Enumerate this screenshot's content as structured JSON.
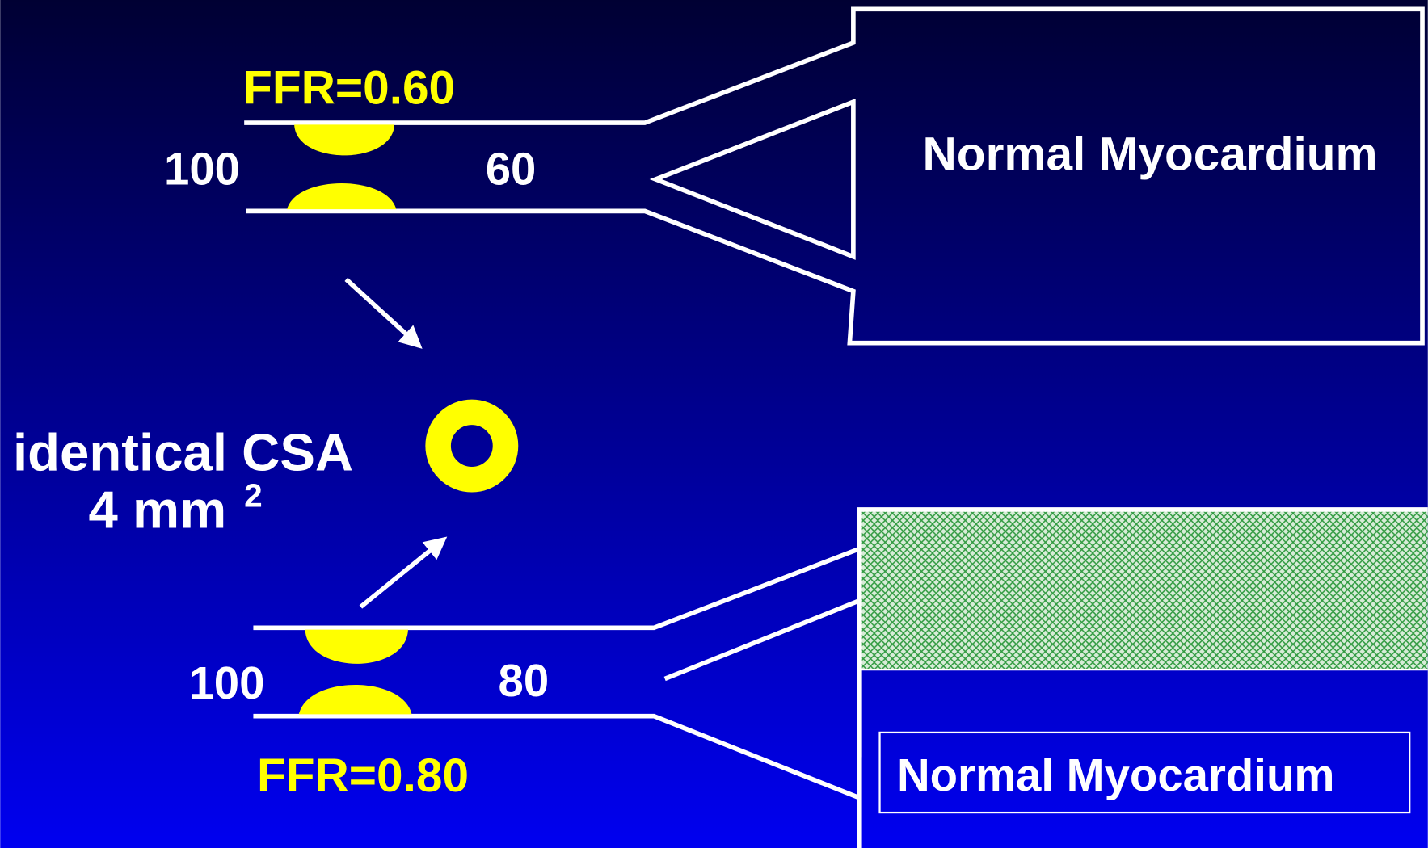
{
  "top": {
    "ffr": "FFR=0.60",
    "proximal_pressure": "100",
    "distal_pressure": "60",
    "territory": "Normal Myocardium"
  },
  "middle": {
    "label": "identical CSA",
    "area": "4 mm",
    "area_exponent": "2"
  },
  "bottom": {
    "ffr": "FFR=0.80",
    "proximal_pressure": "100",
    "distal_pressure": "80",
    "territory": "Normal Myocardium"
  }
}
